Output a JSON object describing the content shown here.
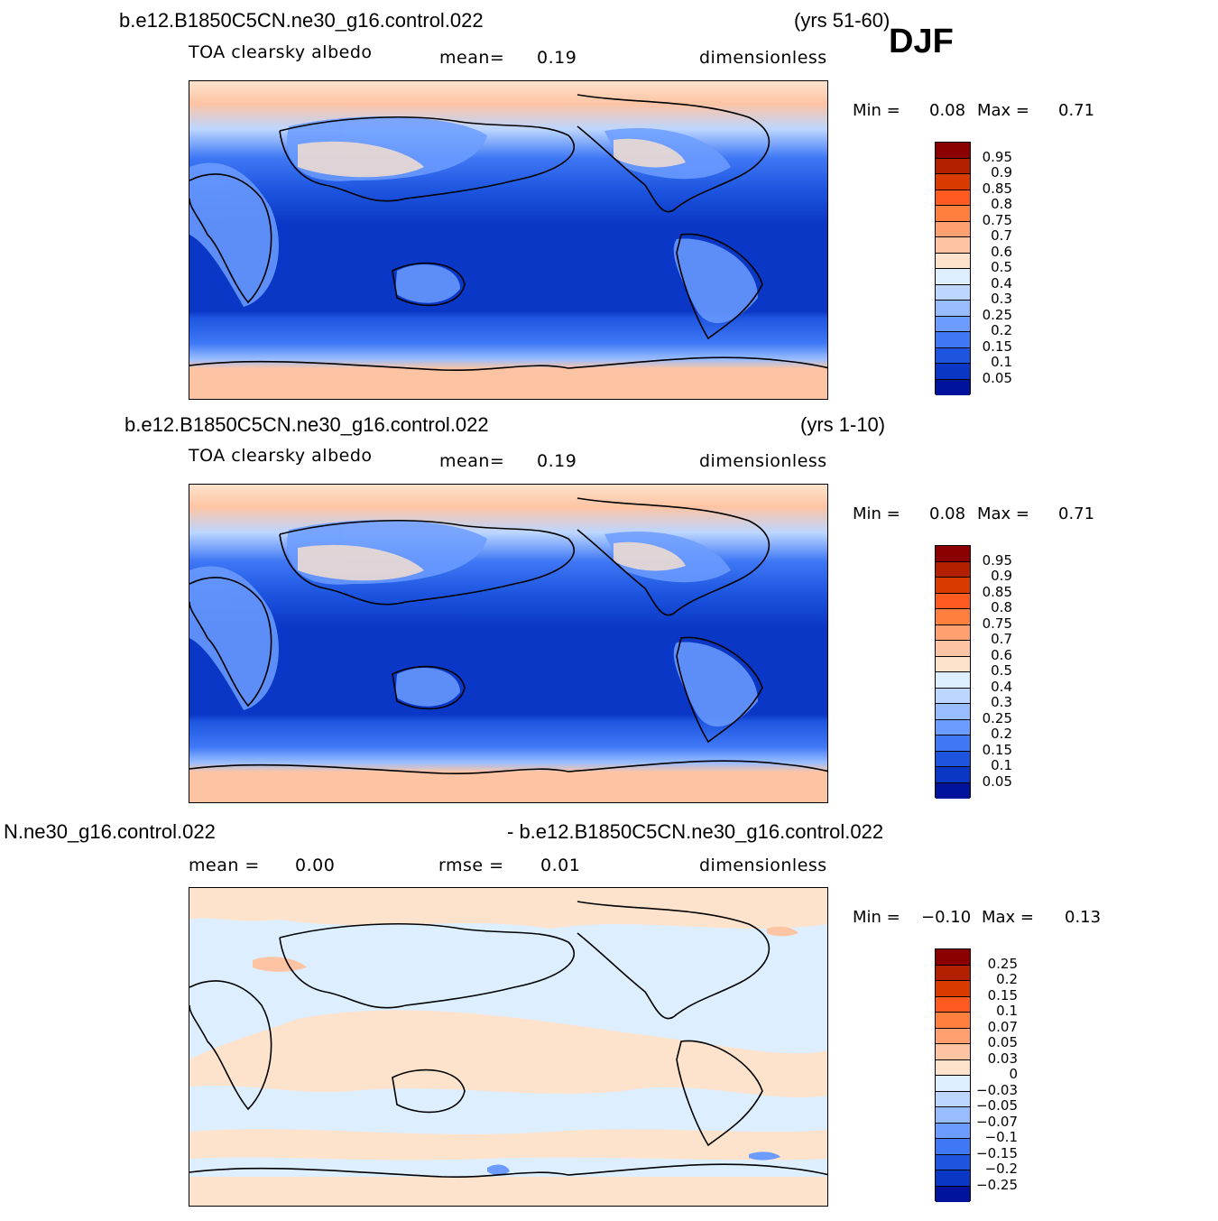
{
  "season": "DJF",
  "panels": [
    {
      "case_title": "b.e12.B1850C5CN.ne30_g16.control.022",
      "years": "(yrs 51-60)",
      "variable": "TOA clearsky albedo",
      "stat1_label": "mean=",
      "stat1_value": "0.19",
      "units": "dimensionless",
      "min_label": "Min =",
      "min_value": "0.08",
      "max_label": "Max =",
      "max_value": "0.71",
      "colorbar_labels": [
        "0.95",
        "0.9",
        "0.85",
        "0.8",
        "0.75",
        "0.7",
        "0.6",
        "0.5",
        "0.4",
        "0.3",
        "0.25",
        "0.2",
        "0.15",
        "0.1",
        "0.05"
      ],
      "colorbar_colors": [
        "#8b0000",
        "#b22000",
        "#d93a00",
        "#ff5a1f",
        "#ff7f3f",
        "#ffa070",
        "#fdc4a4",
        "#fde2cc",
        "#ddeeff",
        "#bcd6ff",
        "#98bdff",
        "#6c9cff",
        "#3f78f5",
        "#1d55e0",
        "#0a37c5",
        "#00139a"
      ]
    },
    {
      "case_title": "b.e12.B1850C5CN.ne30_g16.control.022",
      "years": "(yrs 1-10)",
      "variable": "TOA clearsky albedo",
      "stat1_label": "mean=",
      "stat1_value": "0.19",
      "units": "dimensionless",
      "min_label": "Min =",
      "min_value": "0.08",
      "max_label": "Max =",
      "max_value": "0.71",
      "colorbar_labels": [
        "0.95",
        "0.9",
        "0.85",
        "0.8",
        "0.75",
        "0.7",
        "0.6",
        "0.5",
        "0.4",
        "0.3",
        "0.25",
        "0.2",
        "0.15",
        "0.1",
        "0.05"
      ],
      "colorbar_colors": [
        "#8b0000",
        "#b22000",
        "#d93a00",
        "#ff5a1f",
        "#ff7f3f",
        "#ffa070",
        "#fdc4a4",
        "#fde2cc",
        "#ddeeff",
        "#bcd6ff",
        "#98bdff",
        "#6c9cff",
        "#3f78f5",
        "#1d55e0",
        "#0a37c5",
        "#00139a"
      ]
    },
    {
      "case_title_left": "N.ne30_g16.control.022",
      "case_title_right": "- b.e12.B1850C5CN.ne30_g16.control.022",
      "stat1_label": "mean =",
      "stat1_value": "0.00",
      "stat2_label": "rmse =",
      "stat2_value": "0.01",
      "units": "dimensionless",
      "min_label": "Min =",
      "min_value": "−0.10",
      "max_label": "Max =",
      "max_value": "0.13",
      "colorbar_labels": [
        "0.25",
        "0.2",
        "0.15",
        "0.1",
        "0.07",
        "0.05",
        "0.03",
        "0",
        "−0.03",
        "−0.05",
        "−0.07",
        "−0.1",
        "−0.15",
        "−0.2",
        "−0.25"
      ],
      "colorbar_colors": [
        "#8b0000",
        "#b22000",
        "#d93a00",
        "#ff5a1f",
        "#ff7f3f",
        "#ffa070",
        "#fdc4a4",
        "#fde2cc",
        "#ddeeff",
        "#bcd6ff",
        "#98bdff",
        "#6c9cff",
        "#3f78f5",
        "#1d55e0",
        "#0a37c5",
        "#00139a"
      ]
    }
  ]
}
